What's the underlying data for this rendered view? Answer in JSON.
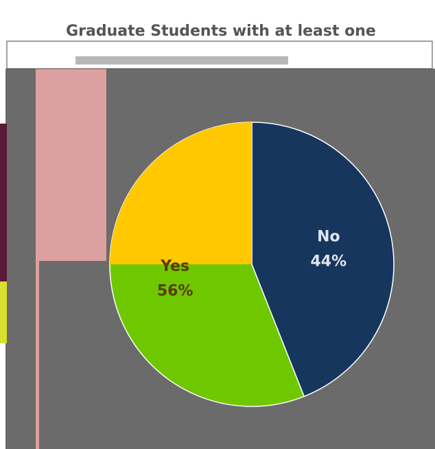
{
  "chart_data": {
    "type": "pie",
    "title": "Graduate Students with at least one",
    "categories": [
      "No",
      "Yes"
    ],
    "values": [
      44,
      56
    ],
    "value_labels": [
      "44%",
      "56%"
    ],
    "colors": [
      "#17365d",
      "#6fc700"
    ],
    "label_colors": [
      "#dfe6f0",
      "#5a3a00"
    ]
  }
}
